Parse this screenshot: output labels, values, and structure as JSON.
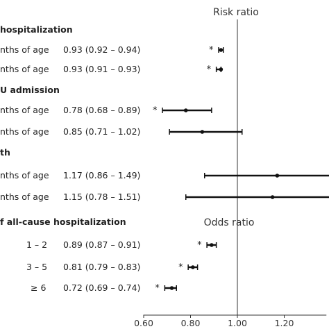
{
  "chart_data": {
    "type": "forest",
    "panel_titles": {
      "risk": "Risk ratio",
      "odds": "Odds ratio"
    },
    "x_ticks": [
      0.6,
      0.8,
      1.0,
      1.2
    ],
    "x_tick_labels": [
      "0.60",
      "0.80",
      "1.00",
      "1.20"
    ],
    "xlim": [
      0.6,
      1.38
    ],
    "reference_value": 1.0,
    "rows": [
      {
        "kind": "header",
        "text": "hospitalization"
      },
      {
        "kind": "data",
        "label": "nths of age",
        "ci_text": "0.93 (0.92 – 0.94)",
        "est": 0.93,
        "lo": 0.92,
        "hi": 0.94,
        "star": "*"
      },
      {
        "kind": "data",
        "label": "nths of age",
        "ci_text": "0.93 (0.91 – 0.93)",
        "est": 0.93,
        "lo": 0.91,
        "hi": 0.93,
        "star": "*"
      },
      {
        "kind": "header",
        "text": "U admission"
      },
      {
        "kind": "data",
        "label": "nths of age",
        "ci_text": "0.78 (0.68 – 0.89)",
        "est": 0.78,
        "lo": 0.68,
        "hi": 0.89,
        "star": "*"
      },
      {
        "kind": "data",
        "label": "nths of age",
        "ci_text": "0.85 (0.71 – 1.02)",
        "est": 0.85,
        "lo": 0.71,
        "hi": 1.02,
        "star": ""
      },
      {
        "kind": "header",
        "text": "th"
      },
      {
        "kind": "data",
        "label": "nths of age",
        "ci_text": "1.17 (0.86 – 1.49)",
        "est": 1.17,
        "lo": 0.86,
        "hi": 1.49,
        "star": ""
      },
      {
        "kind": "data",
        "label": "nths of age",
        "ci_text": "1.15 (0.78 – 1.51)",
        "est": 1.15,
        "lo": 0.78,
        "hi": 1.51,
        "star": ""
      },
      {
        "kind": "header",
        "text": "f all-cause hospitalization"
      },
      {
        "kind": "data",
        "label": "1 – 2",
        "ci_text": "0.89 (0.87 – 0.91)",
        "est": 0.89,
        "lo": 0.87,
        "hi": 0.91,
        "star": "*"
      },
      {
        "kind": "data",
        "label": "3 – 5",
        "ci_text": "0.81 (0.79 – 0.83)",
        "est": 0.81,
        "lo": 0.79,
        "hi": 0.83,
        "star": "*"
      },
      {
        "kind": "data",
        "label": "≥ 6",
        "ci_text": "0.72 (0.69 – 0.74)",
        "est": 0.72,
        "lo": 0.69,
        "hi": 0.74,
        "star": "*"
      }
    ]
  }
}
